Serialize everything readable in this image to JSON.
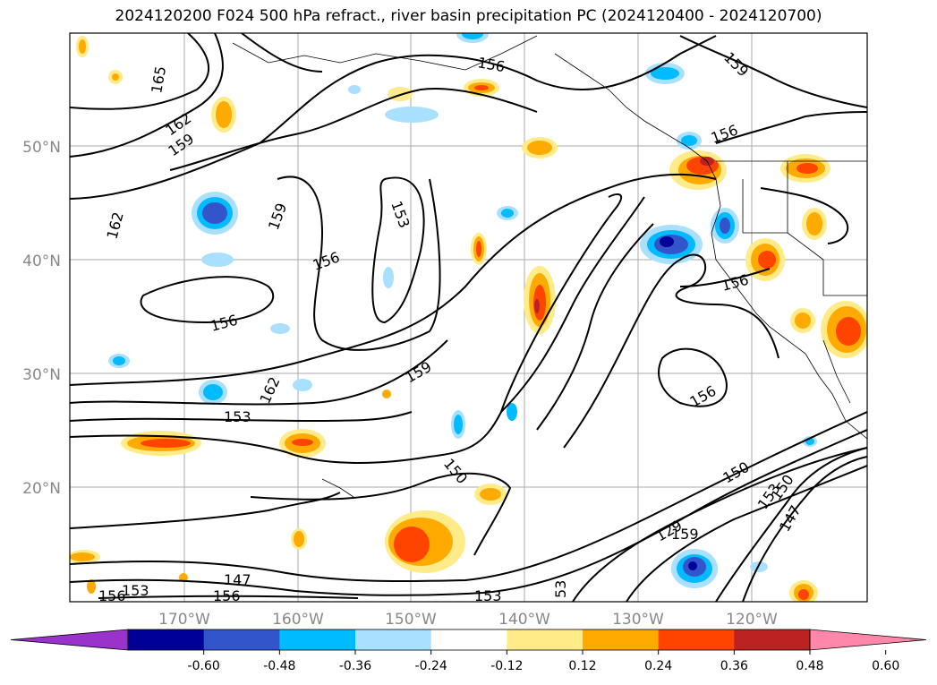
{
  "title": "2024120200 F024 500 hPa refract., river basin precipitation PC (2024120400 - 2024120700)",
  "map": {
    "lon_labels": [
      "170°W",
      "160°W",
      "150°W",
      "140°W",
      "130°W",
      "120°W"
    ],
    "lat_labels": [
      "50°N",
      "40°N",
      "30°N",
      "20°N"
    ],
    "contour_labels": [
      "165",
      "162",
      "159",
      "162",
      "159",
      "156",
      "153",
      "156",
      "156",
      "162",
      "153",
      "159",
      "150",
      "156",
      "156",
      "156",
      "159",
      "150",
      "153",
      "150",
      "147",
      "129",
      "159",
      "147",
      "153",
      "156",
      "156",
      "153",
      "53"
    ]
  },
  "colorbar": {
    "colors": [
      "#9933cc",
      "#000099",
      "#3355cc",
      "#00bbff",
      "#aae0ff",
      "#ffffff",
      "#ffeb88",
      "#ffaa00",
      "#ff4400",
      "#bb2222",
      "#ff88aa"
    ],
    "tick_labels": [
      "-0.60",
      "-0.48",
      "-0.36",
      "-0.24",
      "-0.12",
      "0.12",
      "0.24",
      "0.36",
      "0.48",
      "0.60"
    ]
  }
}
